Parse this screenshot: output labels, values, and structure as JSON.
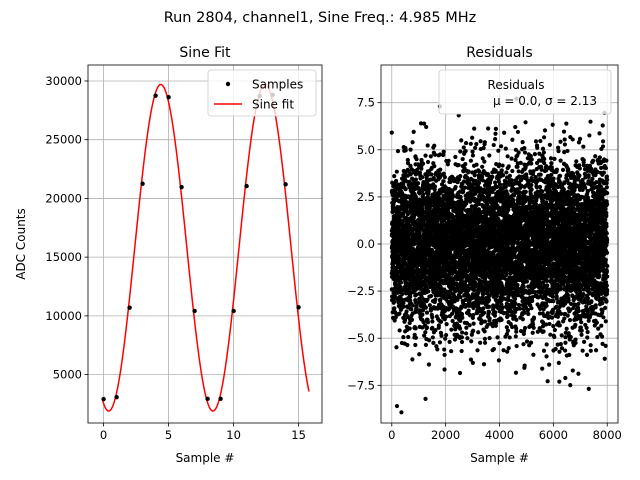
{
  "figure": {
    "suptitle": "Run 2804, channel1, Sine Freq.: 4.985 MHz"
  },
  "chart_data": [
    {
      "type": "line",
      "title": "Sine Fit",
      "xlabel": "Sample #",
      "ylabel": "ADC Counts",
      "xlim": [
        -1.2,
        16.8
      ],
      "ylim": [
        880,
        31360
      ],
      "xticks": [
        0,
        5,
        10,
        15
      ],
      "yticks": [
        5000,
        10000,
        15000,
        20000,
        25000,
        30000
      ],
      "grid": true,
      "legend_placement": "upper-right",
      "series": [
        {
          "name": "Samples",
          "style": "points",
          "color": "#000000",
          "x": [
            0,
            1,
            2,
            3,
            4,
            5,
            6,
            7,
            8,
            9,
            10,
            11,
            12,
            13,
            14,
            15
          ],
          "y": [
            2920,
            3080,
            10700,
            21250,
            28750,
            28620,
            20970,
            10420,
            2940,
            2940,
            10420,
            21050,
            28700,
            28820,
            21200,
            10730
          ]
        },
        {
          "name": "Sine fit",
          "style": "line",
          "color": "#ff0000",
          "model": {
            "offset": 15800,
            "amplitude": 13900,
            "period_samples": 8.02,
            "phase_sample": 4.4,
            "x_start": -0.1,
            "x_end": 15.8
          }
        }
      ]
    },
    {
      "type": "scatter",
      "title": "Residuals",
      "xlabel": "Sample #",
      "xlim": [
        -400,
        8400
      ],
      "ylim": [
        -9.5,
        9.5
      ],
      "xticks": [
        0,
        2000,
        4000,
        6000,
        8000
      ],
      "yticks": [
        -7.5,
        -5.0,
        -2.5,
        0.0,
        2.5,
        5.0,
        7.5
      ],
      "grid": true,
      "legend_placement": "upper-right",
      "series": [
        {
          "name": "Residuals",
          "color": "#000000",
          "distribution": {
            "count": 8000,
            "mean": 0.0,
            "std": 2.13,
            "x_start": 0,
            "x_end": 8000
          }
        }
      ],
      "annotation": "μ = 0.0, σ = 2.13"
    }
  ]
}
